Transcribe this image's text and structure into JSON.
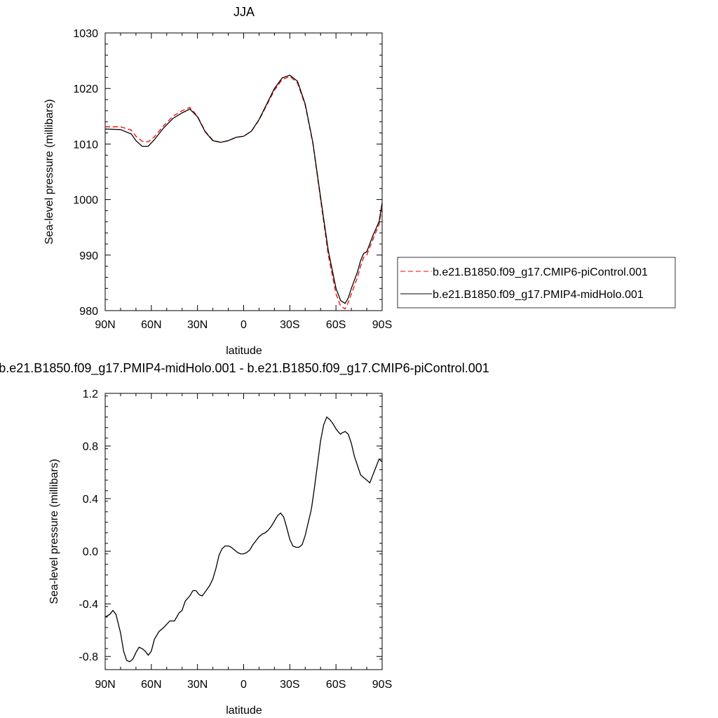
{
  "chart_data": [
    {
      "type": "line",
      "title": "JJA",
      "xlabel": "latitude",
      "ylabel": "Sea-level pressure (millibars)",
      "xlim": [
        90,
        -90
      ],
      "ylim": [
        980,
        1030
      ],
      "x_ticks": [
        90,
        60,
        30,
        0,
        -30,
        -60,
        -90
      ],
      "x_tick_labels": [
        "90N",
        "60N",
        "30N",
        "0",
        "30S",
        "60S",
        "90S"
      ],
      "y_ticks": [
        980,
        990,
        1000,
        1010,
        1020,
        1030
      ],
      "y_tick_labels": [
        "980",
        "990",
        "1000",
        "1010",
        "1020",
        "1030"
      ],
      "legend_position": "right",
      "series": [
        {
          "name": "b.e21.B1850.f09_g17.CMIP6-piControl.001",
          "color": "#ff0000",
          "dash": "dashed",
          "x": [
            90,
            80,
            73,
            70,
            66,
            62,
            58,
            52,
            46,
            40,
            35,
            30,
            25,
            20,
            15,
            10,
            5,
            0,
            -5,
            -10,
            -15,
            -20,
            -25,
            -30,
            -35,
            -40,
            -45,
            -50,
            -55,
            -60,
            -63,
            -66,
            -68,
            -70,
            -74,
            -76,
            -78,
            -80,
            -84,
            -88,
            -90
          ],
          "y": [
            1013.1,
            1013.1,
            1012.5,
            1011.4,
            1010.5,
            1010.4,
            1011.3,
            1013.3,
            1015.0,
            1016.0,
            1016.6,
            1015.0,
            1012.3,
            1010.7,
            1010.3,
            1010.6,
            1011.2,
            1011.4,
            1012.3,
            1014.3,
            1017.0,
            1019.7,
            1021.6,
            1022.2,
            1021.0,
            1017.0,
            1010.0,
            1000.0,
            990.0,
            983.0,
            980.8,
            980.3,
            981.5,
            983.0,
            986.0,
            988.0,
            989.6,
            990.0,
            992.8,
            995.5,
            998.8
          ]
        },
        {
          "name": "b.e21.B1850.f09_g17.PMIP4-midHolo.001",
          "color": "#000000",
          "dash": "solid",
          "x": [
            90,
            80,
            73,
            70,
            66,
            62,
            58,
            52,
            46,
            40,
            35,
            30,
            25,
            20,
            15,
            10,
            5,
            0,
            -5,
            -10,
            -15,
            -20,
            -25,
            -30,
            -35,
            -40,
            -45,
            -50,
            -55,
            -60,
            -63,
            -66,
            -68,
            -70,
            -74,
            -76,
            -78,
            -80,
            -84,
            -88,
            -90
          ],
          "y": [
            1012.7,
            1012.6,
            1011.8,
            1010.6,
            1009.6,
            1009.6,
            1010.8,
            1012.9,
            1014.6,
            1015.6,
            1016.3,
            1014.9,
            1012.2,
            1010.6,
            1010.3,
            1010.6,
            1011.2,
            1011.4,
            1012.3,
            1014.4,
            1017.2,
            1020.0,
            1021.9,
            1022.4,
            1021.3,
            1017.2,
            1010.2,
            1000.4,
            990.8,
            984.0,
            981.8,
            981.3,
            982.3,
            984.0,
            987.0,
            989.0,
            990.3,
            990.6,
            993.5,
            996.0,
            999.4
          ]
        }
      ]
    },
    {
      "type": "line",
      "title": "b.e21.B1850.f09_g17.PMIP4-midHolo.001 - b.e21.B1850.f09_g17.CMIP6-piControl.001",
      "xlabel": "latitude",
      "ylabel": "Sea-level pressure (millibars)",
      "xlim": [
        90,
        -90
      ],
      "ylim": [
        -0.9,
        1.2
      ],
      "x_ticks": [
        90,
        60,
        30,
        0,
        -30,
        -60,
        -90
      ],
      "x_tick_labels": [
        "90N",
        "60N",
        "30N",
        "0",
        "30S",
        "60S",
        "90S"
      ],
      "y_ticks": [
        -0.8,
        -0.4,
        0.0,
        0.4,
        0.8,
        1.2
      ],
      "y_tick_labels": [
        "-0.8",
        "-0.4",
        "0.0",
        "0.4",
        "0.8",
        "1.2"
      ],
      "series": [
        {
          "color": "#000000",
          "dash": "solid",
          "x": [
            90,
            87,
            85,
            83,
            80,
            78,
            76,
            74,
            72,
            70,
            68,
            66,
            64,
            62,
            60,
            58,
            55,
            52,
            48,
            45,
            42,
            40,
            38,
            35,
            33,
            31,
            29,
            27,
            25,
            22,
            20,
            18,
            16,
            14,
            12,
            10,
            8,
            6,
            4,
            2,
            0,
            -2,
            -4,
            -6,
            -8,
            -10,
            -12,
            -14,
            -16,
            -18,
            -20,
            -22,
            -24,
            -26,
            -28,
            -30,
            -32,
            -34,
            -36,
            -38,
            -40,
            -42,
            -44,
            -46,
            -48,
            -50,
            -52,
            -54,
            -56,
            -58,
            -60,
            -62,
            -63,
            -64,
            -66,
            -68,
            -70,
            -72,
            -74,
            -76,
            -78,
            -80,
            -82,
            -84,
            -86,
            -88,
            -90
          ],
          "y": [
            -0.5,
            -0.48,
            -0.45,
            -0.48,
            -0.62,
            -0.76,
            -0.83,
            -0.84,
            -0.82,
            -0.77,
            -0.73,
            -0.74,
            -0.76,
            -0.79,
            -0.76,
            -0.67,
            -0.61,
            -0.58,
            -0.53,
            -0.53,
            -0.47,
            -0.45,
            -0.38,
            -0.34,
            -0.3,
            -0.3,
            -0.33,
            -0.34,
            -0.31,
            -0.26,
            -0.21,
            -0.13,
            -0.03,
            0.02,
            0.04,
            0.04,
            0.03,
            0.01,
            -0.01,
            -0.02,
            -0.02,
            -0.01,
            0.01,
            0.05,
            0.08,
            0.11,
            0.13,
            0.14,
            0.16,
            0.19,
            0.23,
            0.27,
            0.29,
            0.26,
            0.18,
            0.09,
            0.04,
            0.03,
            0.03,
            0.05,
            0.12,
            0.22,
            0.32,
            0.48,
            0.66,
            0.84,
            0.96,
            1.02,
            1.0,
            0.97,
            0.93,
            0.9,
            0.89,
            0.9,
            0.91,
            0.89,
            0.82,
            0.72,
            0.65,
            0.58,
            0.56,
            0.54,
            0.52,
            0.58,
            0.64,
            0.7,
            0.68
          ]
        }
      ]
    }
  ]
}
